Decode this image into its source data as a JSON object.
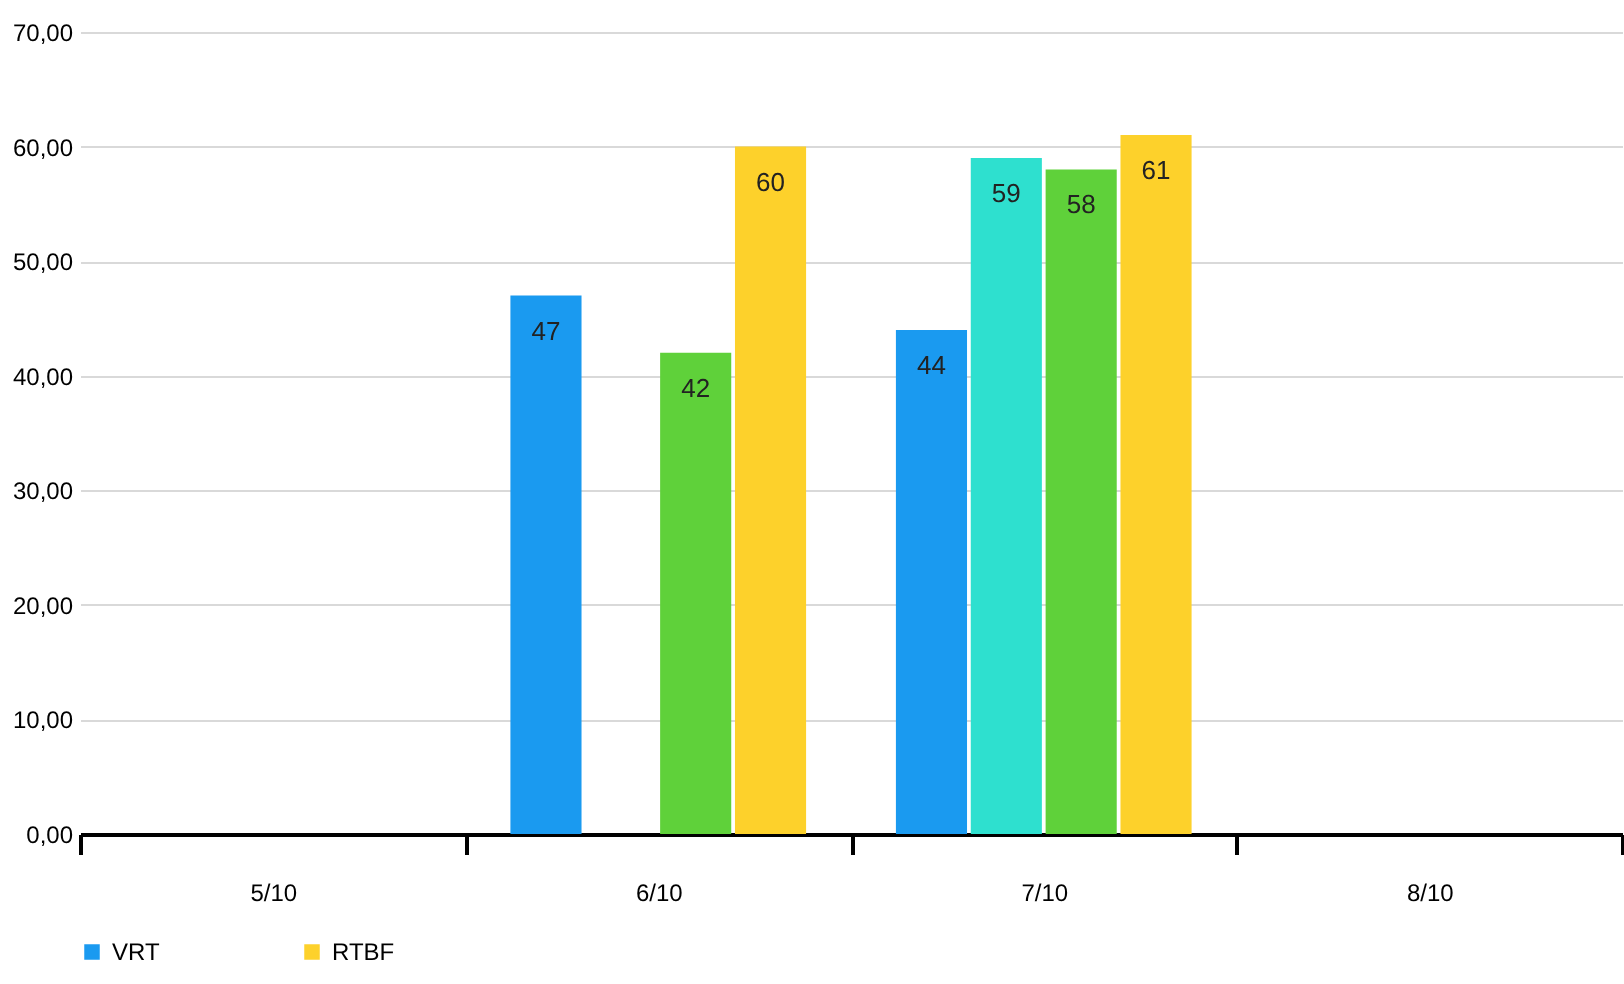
{
  "chart_data": {
    "type": "bar",
    "categories": [
      "5/10",
      "6/10",
      "7/10",
      "8/10"
    ],
    "series": [
      {
        "name": "VRT",
        "color": "#1a9af0",
        "values": [
          null,
          47,
          44,
          null
        ]
      },
      {
        "color": "#2ee0cf",
        "values": [
          null,
          null,
          59,
          null
        ]
      },
      {
        "color": "#5fd13a",
        "values": [
          null,
          42,
          58,
          null
        ]
      },
      {
        "name": "RTBF",
        "color": "#fdd12b",
        "values": [
          null,
          60,
          61,
          null
        ]
      }
    ],
    "ylim": [
      0,
      70
    ],
    "yticks": [
      {
        "value": 0,
        "label": "0,00"
      },
      {
        "value": 10,
        "label": "10,00"
      },
      {
        "value": 20,
        "label": "20,00"
      },
      {
        "value": 30,
        "label": "30,00"
      },
      {
        "value": 40,
        "label": "40,00"
      },
      {
        "value": 50,
        "label": "50,00"
      },
      {
        "value": 60,
        "label": "60,00"
      },
      {
        "value": 70,
        "label": "70,00"
      }
    ],
    "grid": "y",
    "legend": "bottom",
    "data_labels": true
  }
}
